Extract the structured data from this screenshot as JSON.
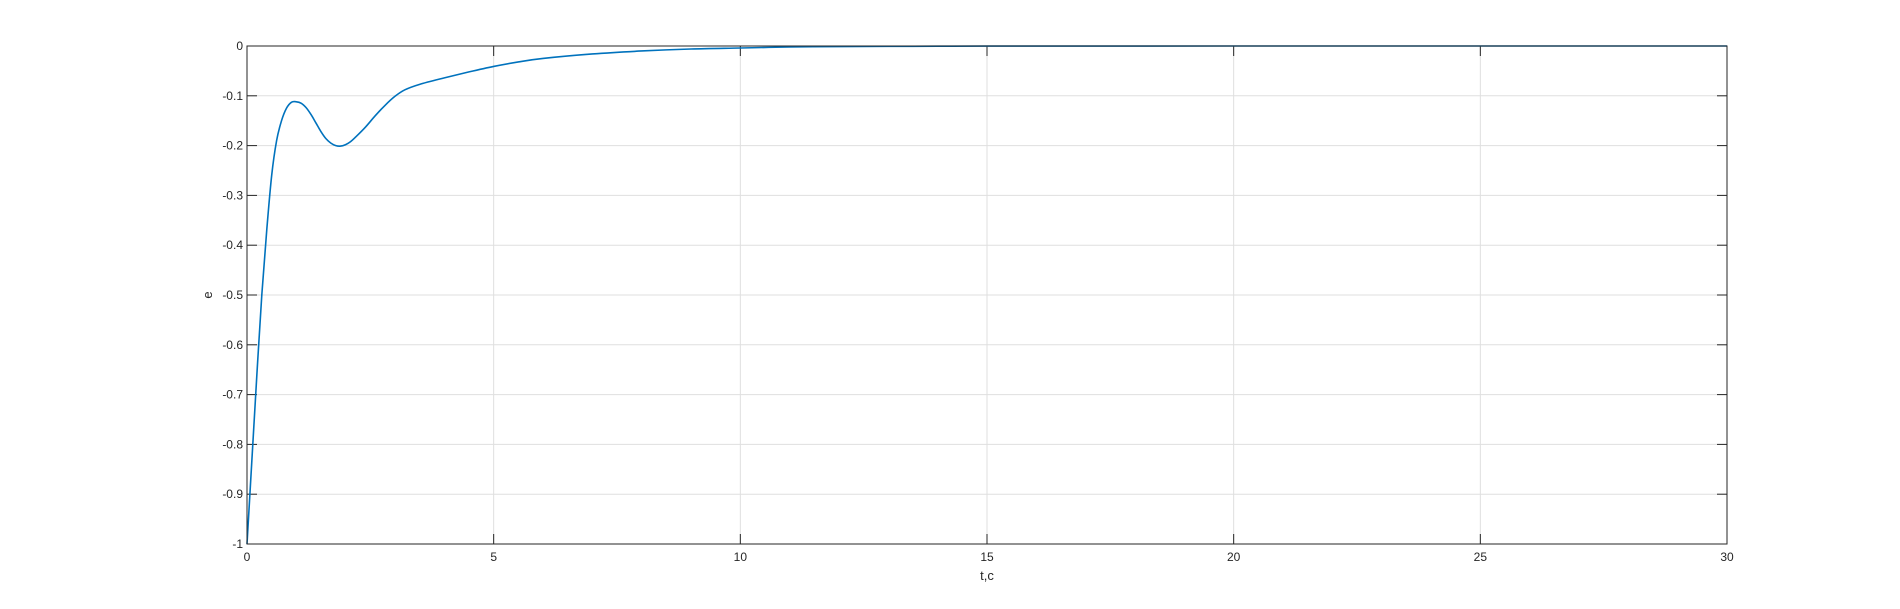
{
  "chart_data": {
    "type": "line",
    "title": "",
    "xlabel": "t,c",
    "ylabel": "e",
    "xlim": [
      0,
      30
    ],
    "ylim": [
      -1,
      0
    ],
    "xticks": [
      0,
      5,
      10,
      15,
      20,
      25,
      30
    ],
    "xtick_labels": [
      "0",
      "5",
      "10",
      "15",
      "20",
      "25",
      "30"
    ],
    "yticks": [
      0,
      -0.1,
      -0.2,
      -0.3,
      -0.4,
      -0.5,
      -0.6,
      -0.7,
      -0.8,
      -0.9,
      -1
    ],
    "ytick_labels": [
      "0",
      "-0.1",
      "-0.2",
      "-0.3",
      "-0.4",
      "-0.5",
      "-0.6",
      "-0.7",
      "-0.8",
      "-0.9",
      "-1"
    ],
    "grid": true,
    "box": true,
    "series": [
      {
        "color": "#0072BD",
        "x": [
          0,
          0.1,
          0.2,
          0.3,
          0.4,
          0.5,
          0.6,
          0.7,
          0.8,
          0.9,
          1.0,
          1.1,
          1.2,
          1.3,
          1.4,
          1.5,
          1.6,
          1.7,
          1.8,
          1.9,
          2.0,
          2.1,
          2.2,
          2.4,
          2.6,
          2.8,
          3.0,
          3.2,
          3.5,
          4.0,
          4.5,
          5.0,
          5.5,
          6.0,
          7.0,
          8.0,
          9.0,
          10.0,
          11.0,
          12.0,
          13.0,
          14.0,
          15.0,
          17.5,
          20.0,
          25.0,
          30.0
        ],
        "y": [
          -1.0,
          -0.83,
          -0.66,
          -0.5,
          -0.37,
          -0.26,
          -0.19,
          -0.15,
          -0.125,
          -0.113,
          -0.112,
          -0.115,
          -0.124,
          -0.138,
          -0.155,
          -0.172,
          -0.186,
          -0.195,
          -0.2,
          -0.201,
          -0.198,
          -0.192,
          -0.183,
          -0.163,
          -0.14,
          -0.119,
          -0.101,
          -0.088,
          -0.077,
          -0.064,
          -0.052,
          -0.041,
          -0.032,
          -0.025,
          -0.016,
          -0.01,
          -0.006,
          -0.004,
          -0.002,
          -0.0012,
          -0.0007,
          -0.0004,
          -0.0002,
          -0.0001,
          0,
          0,
          0
        ]
      }
    ]
  }
}
